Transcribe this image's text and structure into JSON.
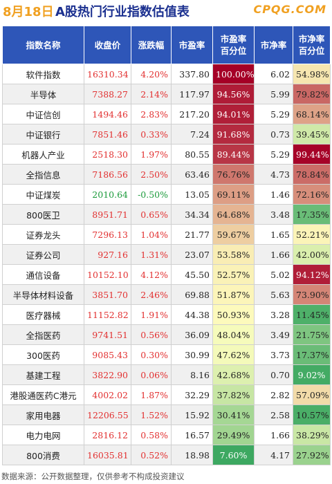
{
  "header": {
    "date": "8月18日",
    "title": "A股热门行业指数估值表",
    "logo": "CPQG.COM"
  },
  "columns": [
    "指数名称",
    "收盘价",
    "涨跌幅",
    "市盈率",
    "市盈率\n百分位",
    "市净率",
    "市净率\n百分位"
  ],
  "rows": [
    {
      "name": "软件指数",
      "close": "16310.34",
      "change": "4.20%",
      "pe": "337.80",
      "pe_pct": "100.00%",
      "pb": "6.02",
      "pb_pct": "54.98%"
    },
    {
      "name": "半导体",
      "close": "7388.27",
      "change": "2.14%",
      "pe": "117.97",
      "pe_pct": "94.56%",
      "pb": "5.99",
      "pb_pct": "79.82%"
    },
    {
      "name": "中证信创",
      "close": "1494.46",
      "change": "2.83%",
      "pe": "217.20",
      "pe_pct": "94.01%",
      "pb": "5.29",
      "pb_pct": "68.14%"
    },
    {
      "name": "中证银行",
      "close": "7851.46",
      "change": "0.33%",
      "pe": "7.24",
      "pe_pct": "91.68%",
      "pb": "0.73",
      "pb_pct": "39.45%"
    },
    {
      "name": "机器人产业",
      "close": "2518.30",
      "change": "1.97%",
      "pe": "80.55",
      "pe_pct": "89.44%",
      "pb": "5.29",
      "pb_pct": "99.44%"
    },
    {
      "name": "全指信息",
      "close": "7186.56",
      "change": "2.50%",
      "pe": "63.46",
      "pe_pct": "76.76%",
      "pb": "4.73",
      "pb_pct": "78.84%"
    },
    {
      "name": "中证煤炭",
      "close": "2010.64",
      "change": "-0.50%",
      "pe": "13.05",
      "pe_pct": "69.11%",
      "pb": "1.46",
      "pb_pct": "72.16%"
    },
    {
      "name": "800医卫",
      "close": "8951.71",
      "change": "0.65%",
      "pe": "34.34",
      "pe_pct": "64.68%",
      "pb": "3.48",
      "pb_pct": "17.35%"
    },
    {
      "name": "证券龙头",
      "close": "7296.13",
      "change": "1.04%",
      "pe": "21.77",
      "pe_pct": "59.67%",
      "pb": "1.65",
      "pb_pct": "52.21%"
    },
    {
      "name": "证券公司",
      "close": "927.16",
      "change": "1.31%",
      "pe": "23.07",
      "pe_pct": "53.58%",
      "pb": "1.66",
      "pb_pct": "42.00%"
    },
    {
      "name": "通信设备",
      "close": "10152.10",
      "change": "4.12%",
      "pe": "45.50",
      "pe_pct": "52.57%",
      "pb": "5.02",
      "pb_pct": "94.12%"
    },
    {
      "name": "半导体材料设备",
      "close": "3851.70",
      "change": "2.46%",
      "pe": "69.88",
      "pe_pct": "51.87%",
      "pb": "5.63",
      "pb_pct": "73.90%"
    },
    {
      "name": "医疗器械",
      "close": "11152.82",
      "change": "1.91%",
      "pe": "44.38",
      "pe_pct": "50.93%",
      "pb": "3.28",
      "pb_pct": "11.45%"
    },
    {
      "name": "全指医药",
      "close": "9741.51",
      "change": "0.56%",
      "pe": "36.09",
      "pe_pct": "48.04%",
      "pb": "3.49",
      "pb_pct": "21.75%"
    },
    {
      "name": "300医药",
      "close": "9085.43",
      "change": "0.30%",
      "pe": "30.99",
      "pe_pct": "47.62%",
      "pb": "3.73",
      "pb_pct": "17.37%"
    },
    {
      "name": "基建工程",
      "close": "3822.90",
      "change": "0.06%",
      "pe": "8.16",
      "pe_pct": "42.68%",
      "pb": "0.70",
      "pb_pct": "9.02%"
    },
    {
      "name": "港股通医药C港元",
      "close": "4002.02",
      "change": "1.87%",
      "pe": "32.29",
      "pe_pct": "37.82%",
      "pb": "2.82",
      "pb_pct": "57.09%"
    },
    {
      "name": "家用电器",
      "close": "12206.55",
      "change": "1.52%",
      "pe": "15.92",
      "pe_pct": "30.41%",
      "pb": "2.58",
      "pb_pct": "10.57%"
    },
    {
      "name": "电力电网",
      "close": "2816.12",
      "change": "0.58%",
      "pe": "16.57",
      "pe_pct": "29.49%",
      "pb": "1.66",
      "pb_pct": "38.29%"
    },
    {
      "name": "800消费",
      "close": "16035.81",
      "change": "0.52%",
      "pe": "18.98",
      "pe_pct": "7.60%",
      "pb": "4.17",
      "pb_pct": "27.92%"
    }
  ],
  "footer": "数据来源：公开数据整理，仅供参考不构成投资建议",
  "colors": {
    "header_bg": "#2e56b8",
    "up": "#e23030",
    "down": "#1a9a3a",
    "scale_high": "#a50026",
    "scale_mid": "#ffffbf",
    "scale_low": "#1a9850"
  }
}
